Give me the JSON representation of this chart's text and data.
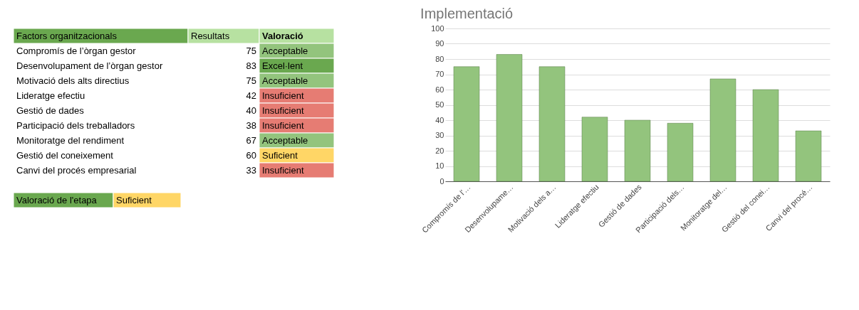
{
  "chart_data": [
    {
      "type": "other",
      "categories": [
        "Compromís de l’òrgan gestor",
        "Desenvolupament de l’òrgan gestor",
        "Motivació dels alts directius",
        "Lideratge efectiu",
        "Gestió de dades",
        "Participació dels treballadors",
        "Monitoratge del rendiment",
        "Gestió del coneixement",
        "Canvi del procés empresarial"
      ],
      "values": [
        75,
        83,
        75,
        42,
        40,
        38,
        67,
        60,
        33
      ],
      "data_labels": true,
      "colors": [
        "#93c47d",
        "#6aa84f",
        "#93c47d",
        "#e67c73",
        "#e67c73",
        "#e67c73",
        "#93c47d",
        "#ffd666",
        "#e67c73"
      ],
      "annotations": [
        "Factors organitzacionals",
        "Resultats",
        "Valoració",
        "Acceptable",
        "Excel·lent",
        "Acceptable",
        "Insuficient",
        "Insuficient",
        "Insuficient",
        "Acceptable",
        "Suficient",
        "Insuficient",
        "Valoració de l'etapa",
        "Suficient"
      ]
    },
    {
      "type": "bar",
      "title": "Implementació",
      "categories": [
        "Compromís de l’…",
        "Desenvolupame…",
        "Motivació dels a…",
        "Lideratge efectiu",
        "Gestió de dades",
        "Participació dels…",
        "Monitoratge del…",
        "Gestió del conei…",
        "Canvi del procé…"
      ],
      "values": [
        75,
        83,
        75,
        42,
        40,
        38,
        67,
        60,
        33
      ],
      "color": "#93c47d",
      "ylim": [
        0,
        100
      ],
      "yticks": [
        0,
        10,
        20,
        30,
        40,
        50,
        60,
        70,
        80,
        90,
        100
      ],
      "grid": "y"
    }
  ]
}
